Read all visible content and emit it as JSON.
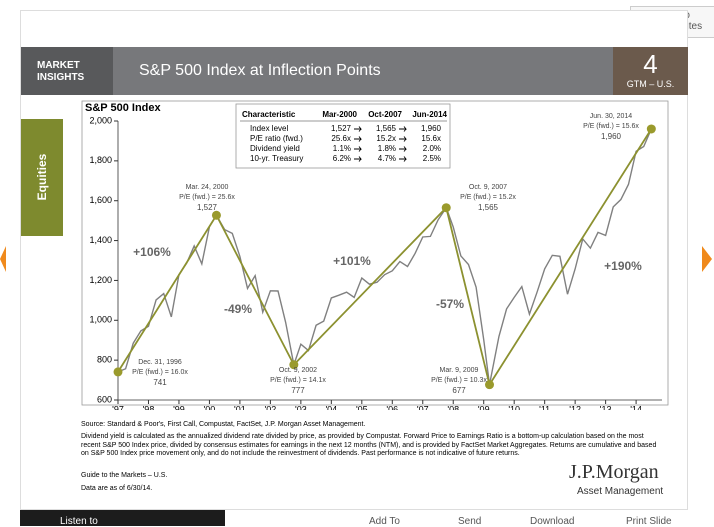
{
  "ui": {
    "favorites": "Add to Favorites",
    "listen": "Listen to",
    "toolbar": [
      "Add To",
      "Send",
      "Download",
      "Print Slide"
    ]
  },
  "header": {
    "badge": [
      "MARKET",
      "INSIGHTS"
    ],
    "title": "S&P 500 Index at Inflection Points",
    "page_number": "4",
    "page_label": "GTM – U.S.",
    "tab": "Equities"
  },
  "chart_data": {
    "type": "line",
    "title": "S&P 500 Index",
    "xlim": [
      1997,
      2014.85
    ],
    "xticks": [
      {
        "value": 1997,
        "label": "'97"
      },
      {
        "value": 1998,
        "label": "'98"
      },
      {
        "value": 1999,
        "label": "'99"
      },
      {
        "value": 2000,
        "label": "'00"
      },
      {
        "value": 2001,
        "label": "'01"
      },
      {
        "value": 2002,
        "label": "'02"
      },
      {
        "value": 2003,
        "label": "'03"
      },
      {
        "value": 2004,
        "label": "'04"
      },
      {
        "value": 2005,
        "label": "'05"
      },
      {
        "value": 2006,
        "label": "'06"
      },
      {
        "value": 2007,
        "label": "'07"
      },
      {
        "value": 2008,
        "label": "'08"
      },
      {
        "value": 2009,
        "label": "'09"
      },
      {
        "value": 2010,
        "label": "'10"
      },
      {
        "value": 2011,
        "label": "'11"
      },
      {
        "value": 2012,
        "label": "'12"
      },
      {
        "value": 2013,
        "label": "'13"
      },
      {
        "value": 2014,
        "label": "'14"
      }
    ],
    "ylim": [
      600,
      2000
    ],
    "yticks": [
      600,
      800,
      {
        "value": 1000,
        "label": "1,000"
      },
      {
        "value": 1200,
        "label": "1,200"
      },
      {
        "value": 1400,
        "label": "1,400"
      },
      {
        "value": 1600,
        "label": "1,600"
      },
      {
        "value": 1800,
        "label": "1,800"
      },
      {
        "value": 2000,
        "label": "2,000"
      }
    ],
    "series": [
      {
        "color": "#808080",
        "x": [
          1997.0,
          1997.25,
          1997.5,
          1997.75,
          1998.0,
          1998.25,
          1998.5,
          1998.75,
          1999.0,
          1999.25,
          1999.5,
          1999.75,
          2000.0,
          2000.23,
          2000.5,
          2000.75,
          2001.0,
          2001.25,
          2001.5,
          2001.75,
          2002.0,
          2002.25,
          2002.5,
          2002.77,
          2003.0,
          2003.25,
          2003.5,
          2003.75,
          2004.0,
          2004.25,
          2004.5,
          2004.75,
          2005.0,
          2005.25,
          2005.5,
          2005.75,
          2006.0,
          2006.25,
          2006.5,
          2006.75,
          2007.0,
          2007.25,
          2007.5,
          2007.77,
          2008.0,
          2008.25,
          2008.5,
          2008.75,
          2009.0,
          2009.19,
          2009.5,
          2009.75,
          2010.0,
          2010.25,
          2010.5,
          2010.75,
          2011.0,
          2011.25,
          2011.5,
          2011.75,
          2012.0,
          2012.25,
          2012.5,
          2012.75,
          2013.0,
          2013.25,
          2013.5,
          2013.75,
          2014.0,
          2014.25,
          2014.5
        ],
        "values": [
          741,
          757,
          885,
          947,
          970,
          1102,
          1134,
          1017,
          1229,
          1286,
          1373,
          1283,
          1469,
          1527,
          1455,
          1436,
          1320,
          1160,
          1224,
          1041,
          1148,
          1147,
          990,
          777,
          880,
          848,
          975,
          996,
          1112,
          1126,
          1141,
          1115,
          1212,
          1181,
          1191,
          1229,
          1248,
          1295,
          1270,
          1336,
          1418,
          1421,
          1503,
          1565,
          1468,
          1323,
          1280,
          1166,
          903,
          677,
          919,
          1057,
          1115,
          1169,
          1031,
          1141,
          1258,
          1326,
          1321,
          1131,
          1258,
          1408,
          1362,
          1441,
          1426,
          1569,
          1606,
          1682,
          1848,
          1872,
          1960
        ]
      },
      {
        "color": "#8c9130",
        "x": [
          1997.0,
          2000.23,
          2002.77,
          2007.77,
          2009.19,
          2014.5
        ],
        "values": [
          741,
          1527,
          777,
          1565,
          677,
          1960
        ],
        "value_labels": [
          "741",
          "1,527",
          "777",
          "1,565",
          "677",
          "1,960"
        ]
      }
    ],
    "point_labels": [
      [
        "Dec. 31, 1996",
        "P/E (fwd.) = 16.0x"
      ],
      [
        "Mar. 24, 2000",
        "P/E (fwd.) = 25.6x"
      ],
      [
        "Oct. 9, 2002",
        "P/E (fwd.) = 14.1x"
      ],
      [
        "Oct. 9, 2007",
        "P/E (fwd.) = 15.2x"
      ],
      [
        "Mar. 9, 2009",
        "P/E (fwd.) = 10.3x"
      ],
      [
        "Jun. 30, 2014",
        "P/E (fwd.) = 15.6x"
      ]
    ],
    "annotations": [
      "+106%",
      "-49%",
      "+101%",
      "-57%",
      "+190%"
    ],
    "table": {
      "header": [
        "Characteristic",
        "Mar-2000",
        "Oct-2007",
        "Jun-2014"
      ],
      "rows": [
        [
          "Index level",
          "1,527",
          "1,565",
          "1,960"
        ],
        [
          "P/E ratio (fwd.)",
          "25.6x",
          "15.2x",
          "15.6x"
        ],
        [
          "Dividend yield",
          "1.1%",
          "1.8%",
          "2.0%"
        ],
        [
          "10-yr. Treasury",
          "6.2%",
          "4.7%",
          "2.5%"
        ]
      ]
    }
  },
  "footer": {
    "source": "Source: Standard & Poor's, First Call, Compustat, FactSet, J.P. Morgan Asset Management.",
    "note": "Dividend yield is calculated as the annualized dividend rate divided by price, as provided by Compustat. Forward Price to Earnings Ratio is a bottom-up calculation based on the most recent S&P 500 Index price, divided by consensus estimates for earnings in the next 12 months (NTM), and is provided by FactSet Market Aggregates. Returns are cumulative and based on S&P 500 Index price movement only, and do not include the reinvestment of dividends. Past performance is not indicative of future returns.",
    "guide": "Guide to the Markets – U.S.",
    "asof": "Data are as of 6/30/14.",
    "logo": "J.P.Morgan",
    "logo_sub": "Asset Management"
  }
}
